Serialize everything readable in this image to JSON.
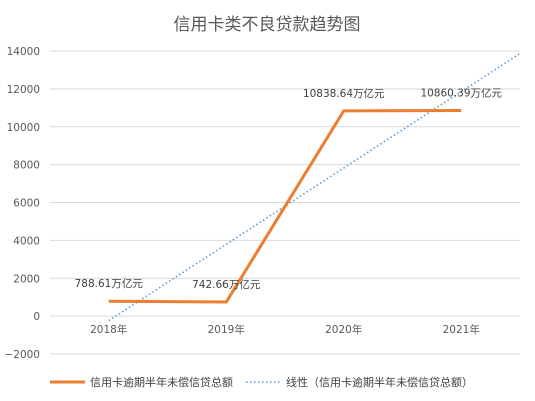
{
  "chart_data": {
    "type": "line",
    "title": "信用卡类不良贷款趋势图",
    "categories": [
      "2018年",
      "2019年",
      "2020年",
      "2021年"
    ],
    "series": [
      {
        "name": "信用卡逾期半年未偿信贷总额",
        "values": [
          788.61,
          742.66,
          10838.64,
          10860.39
        ],
        "data_labels": [
          "788.61万亿元",
          "742.66万亿元",
          "10838.64万亿元",
          "10860.39万亿元"
        ],
        "color": "#ed7d31"
      }
    ],
    "trendline": {
      "type": "linear",
      "name": "线性（信用卡逾期半年未偿信贷总额）",
      "color": "#5b9bd5"
    },
    "ylim": [
      -2000,
      14000
    ],
    "yticks": [
      -2000,
      0,
      2000,
      4000,
      6000,
      8000,
      10000,
      12000,
      14000
    ],
    "ytick_labels": [
      "−2000",
      "0",
      "2000",
      "4000",
      "6000",
      "8000",
      "10000",
      "12000",
      "14000"
    ],
    "grid": true,
    "legend_position": "bottom"
  }
}
